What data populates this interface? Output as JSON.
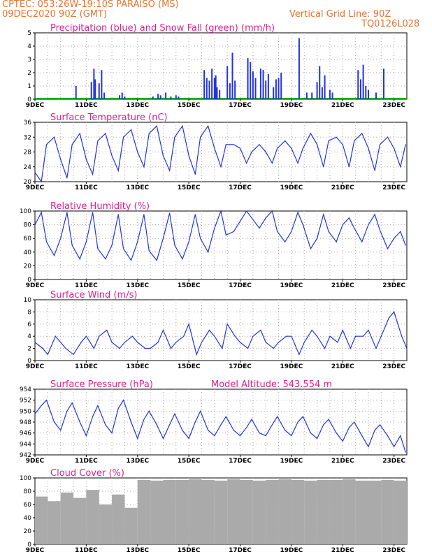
{
  "header": {
    "line1_left": "CPTEC:   053:26W-19:10S   PARAISO (MS)",
    "line2_left": "09DEC2020 90Z (GMT)",
    "line2_right": "Vertical Grid Line: 90Z",
    "line3_right": "TQ0126L028"
  },
  "colors": {
    "header": "#e8742a",
    "title": "#e0208f",
    "line": "#2233dd",
    "bars": "#2233dd",
    "snow": "#00aa00",
    "cloud": "#aaaaaa",
    "grid": "#aaaaaa"
  },
  "x_ticks": [
    "9DEC",
    "11DEC",
    "13DEC",
    "15DEC",
    "17DEC",
    "19DEC",
    "21DEC",
    "23DEC"
  ],
  "chart_data": [
    {
      "type": "bar",
      "title": "Precipitation (blue) and Snow Fall (green) (mm/h)",
      "ylim": [
        0,
        5
      ],
      "yticks": [
        0,
        1,
        2,
        3,
        4,
        5
      ],
      "x_unit": "days since 9DEC 00Z",
      "x": [
        1.6,
        2.2,
        2.3,
        2.35,
        2.5,
        2.6,
        2.7,
        3.3,
        3.4,
        3.5,
        4.6,
        4.8,
        4.9,
        5.1,
        5.3,
        5.5,
        5.6,
        6.6,
        6.7,
        6.8,
        6.9,
        7.0,
        7.05,
        7.1,
        7.2,
        7.5,
        7.6,
        7.7,
        7.8,
        8.3,
        8.4,
        8.5,
        8.6,
        8.8,
        8.9,
        9.0,
        9.1,
        9.3,
        9.4,
        9.5,
        9.6,
        10.3,
        10.6,
        10.8,
        11.0,
        11.1,
        11.2,
        11.3,
        11.5,
        11.6,
        12.6,
        12.7,
        12.8,
        12.9,
        13.0,
        13.3,
        13.6
      ],
      "values": [
        1.0,
        1.3,
        2.3,
        1.5,
        1.2,
        2.2,
        0.5,
        0.3,
        0.5,
        0.2,
        0.2,
        0.4,
        0.3,
        0.5,
        0.2,
        0.3,
        0.2,
        2.2,
        1.6,
        1.4,
        2.3,
        1.6,
        1.8,
        0.9,
        0.7,
        2.5,
        1.2,
        3.5,
        1.4,
        3.1,
        2.8,
        2.1,
        1.6,
        2.3,
        2.2,
        1.4,
        1.9,
        0.9,
        1.5,
        1.6,
        2.0,
        4.6,
        0.5,
        0.5,
        1.3,
        2.5,
        0.9,
        1.8,
        0.7,
        0.5,
        2.2,
        1.5,
        2.6,
        1.0,
        0.7,
        0.5,
        2.3
      ]
    },
    {
      "type": "line",
      "title": "Surface Temperature (nC)",
      "ylim": [
        20,
        36
      ],
      "yticks": [
        20,
        24,
        28,
        32,
        36
      ],
      "x_unit": "days since 9DEC 00Z",
      "x": [
        0,
        0.25,
        0.45,
        0.75,
        1.0,
        1.25,
        1.45,
        1.75,
        2.0,
        2.25,
        2.45,
        2.75,
        3.0,
        3.25,
        3.45,
        3.75,
        4.0,
        4.25,
        4.45,
        4.75,
        5.0,
        5.25,
        5.45,
        5.75,
        6.0,
        6.25,
        6.45,
        6.75,
        7.0,
        7.25,
        7.45,
        7.75,
        8.0,
        8.25,
        8.45,
        8.75,
        9.0,
        9.25,
        9.45,
        9.75,
        10.0,
        10.25,
        10.45,
        10.75,
        11.0,
        11.25,
        11.45,
        11.75,
        12.0,
        12.25,
        12.45,
        12.75,
        13.0,
        13.25,
        13.45,
        13.75,
        14.0,
        14.25,
        14.45
      ],
      "values": [
        22.5,
        20,
        30,
        32,
        26,
        21,
        30,
        33,
        26,
        22,
        31,
        33,
        27,
        23,
        32,
        34,
        28,
        24,
        33,
        35,
        27,
        23,
        32,
        35,
        27,
        22,
        32,
        35,
        29,
        24,
        30,
        30,
        29,
        25,
        28,
        30,
        28,
        25,
        29,
        31,
        29,
        25,
        29,
        33,
        30,
        24,
        31,
        32,
        30,
        24,
        31,
        33,
        29,
        23,
        30,
        32,
        29,
        24,
        30
      ]
    },
    {
      "type": "line",
      "title": "Relative Humidity (%)",
      "ylim": [
        0,
        100
      ],
      "yticks": [
        0,
        20,
        40,
        60,
        80,
        100
      ],
      "x_unit": "days since 9DEC 00Z",
      "x": [
        0,
        0.25,
        0.45,
        0.75,
        1.0,
        1.25,
        1.45,
        1.75,
        2.0,
        2.25,
        2.45,
        2.75,
        3.0,
        3.25,
        3.45,
        3.75,
        4.0,
        4.25,
        4.45,
        4.75,
        5.0,
        5.25,
        5.45,
        5.75,
        6.0,
        6.25,
        6.45,
        6.75,
        7.0,
        7.25,
        7.45,
        7.75,
        8.0,
        8.25,
        8.45,
        8.75,
        9.0,
        9.25,
        9.45,
        9.75,
        10.0,
        10.25,
        10.45,
        10.75,
        11.0,
        11.25,
        11.45,
        11.75,
        12.0,
        12.25,
        12.45,
        12.75,
        13.0,
        13.25,
        13.45,
        13.75,
        14.0,
        14.25,
        14.45
      ],
      "values": [
        80,
        98,
        55,
        35,
        60,
        98,
        50,
        30,
        55,
        98,
        45,
        30,
        50,
        95,
        45,
        28,
        55,
        95,
        42,
        28,
        60,
        97,
        50,
        30,
        55,
        95,
        60,
        40,
        75,
        100,
        65,
        70,
        85,
        100,
        90,
        75,
        90,
        100,
        70,
        55,
        70,
        98,
        80,
        45,
        60,
        95,
        70,
        55,
        80,
        90,
        75,
        55,
        80,
        95,
        72,
        45,
        60,
        70,
        50
      ]
    },
    {
      "type": "line",
      "title": "Surface Wind (m/s)",
      "ylim": [
        0,
        10
      ],
      "yticks": [
        0,
        2,
        4,
        6,
        8,
        10
      ],
      "x_unit": "days since 9DEC 00Z",
      "x": [
        0,
        0.3,
        0.5,
        0.8,
        1.0,
        1.2,
        1.5,
        1.8,
        2.0,
        2.3,
        2.5,
        2.8,
        3.0,
        3.3,
        3.5,
        3.8,
        4.0,
        4.3,
        4.5,
        4.8,
        5.0,
        5.3,
        5.5,
        5.8,
        6.0,
        6.3,
        6.5,
        6.8,
        7.0,
        7.3,
        7.5,
        7.8,
        8.0,
        8.3,
        8.5,
        8.8,
        9.0,
        9.3,
        9.5,
        9.8,
        10.0,
        10.3,
        10.5,
        10.8,
        11.0,
        11.3,
        11.5,
        11.8,
        12.0,
        12.3,
        12.5,
        12.8,
        13.0,
        13.3,
        13.5,
        13.8,
        14.0,
        14.3,
        14.5
      ],
      "values": [
        3,
        2,
        1,
        4,
        3,
        2,
        1,
        3,
        4,
        2,
        4,
        5,
        3,
        2,
        3,
        4,
        3,
        2,
        2,
        3,
        5,
        2,
        3,
        4,
        6,
        1,
        3,
        5,
        4,
        2,
        6,
        4,
        3,
        2,
        4,
        5,
        3,
        2,
        3,
        4,
        4,
        1,
        3,
        5,
        4,
        2,
        4,
        3,
        5,
        2,
        4,
        4,
        5,
        2,
        4,
        7,
        8,
        4,
        2
      ]
    },
    {
      "type": "line",
      "title": "Surface Pressure (hPa)",
      "ylim": [
        942,
        954
      ],
      "yticks": [
        942,
        944,
        946,
        948,
        950,
        952,
        954
      ],
      "x_unit": "days since 9DEC 00Z",
      "x": [
        0,
        0.25,
        0.45,
        0.75,
        1.0,
        1.25,
        1.45,
        1.75,
        2.0,
        2.25,
        2.45,
        2.75,
        3.0,
        3.25,
        3.45,
        3.75,
        4.0,
        4.25,
        4.45,
        4.75,
        5.0,
        5.25,
        5.45,
        5.75,
        6.0,
        6.25,
        6.45,
        6.75,
        7.0,
        7.25,
        7.45,
        7.75,
        8.0,
        8.25,
        8.45,
        8.75,
        9.0,
        9.25,
        9.45,
        9.75,
        10.0,
        10.25,
        10.45,
        10.75,
        11.0,
        11.25,
        11.45,
        11.75,
        12.0,
        12.25,
        12.45,
        12.75,
        13.0,
        13.25,
        13.45,
        13.75,
        14.0,
        14.25,
        14.45
      ],
      "values": [
        949.5,
        951,
        952,
        948,
        946.5,
        950,
        951.5,
        948,
        945.5,
        949,
        951,
        947.5,
        946,
        950.5,
        952,
        948,
        945,
        948.5,
        950,
        947.5,
        945,
        947.5,
        949.5,
        946.5,
        945,
        948,
        950,
        946.5,
        945.5,
        947.5,
        949,
        946.5,
        945.5,
        947,
        948.5,
        946,
        945.5,
        947.5,
        949,
        946.5,
        945.5,
        948,
        949,
        946,
        945,
        947.5,
        948.5,
        946,
        944.5,
        947,
        948,
        945.5,
        943.5,
        946.5,
        947.5,
        945.5,
        943.5,
        945.5,
        942.5
      ]
    },
    {
      "type": "bar",
      "title": "Cloud Cover (%)",
      "ylim": [
        0,
        100
      ],
      "yticks": [
        0,
        20,
        40,
        60,
        80,
        100
      ],
      "x_unit": "days since 9DEC 00Z",
      "x": [
        0,
        0.5,
        1.0,
        1.5,
        2.0,
        2.5,
        3.0,
        3.5,
        4.0,
        4.5,
        5.0,
        5.5,
        6.0,
        6.5,
        7.0,
        7.5,
        8.0,
        8.5,
        9.0,
        9.5,
        10.0,
        10.5,
        11.0,
        11.5,
        12.0,
        12.5,
        13.0,
        13.5,
        14.0,
        14.5
      ],
      "values": [
        72,
        65,
        78,
        70,
        82,
        60,
        75,
        55,
        97,
        96,
        97,
        97,
        98,
        97,
        96,
        98,
        97,
        96,
        97,
        98,
        97,
        96,
        97,
        97,
        98,
        96,
        96,
        97,
        96,
        97
      ]
    }
  ],
  "labels": {
    "altitude": "Model Altitude: 543.554 m"
  }
}
